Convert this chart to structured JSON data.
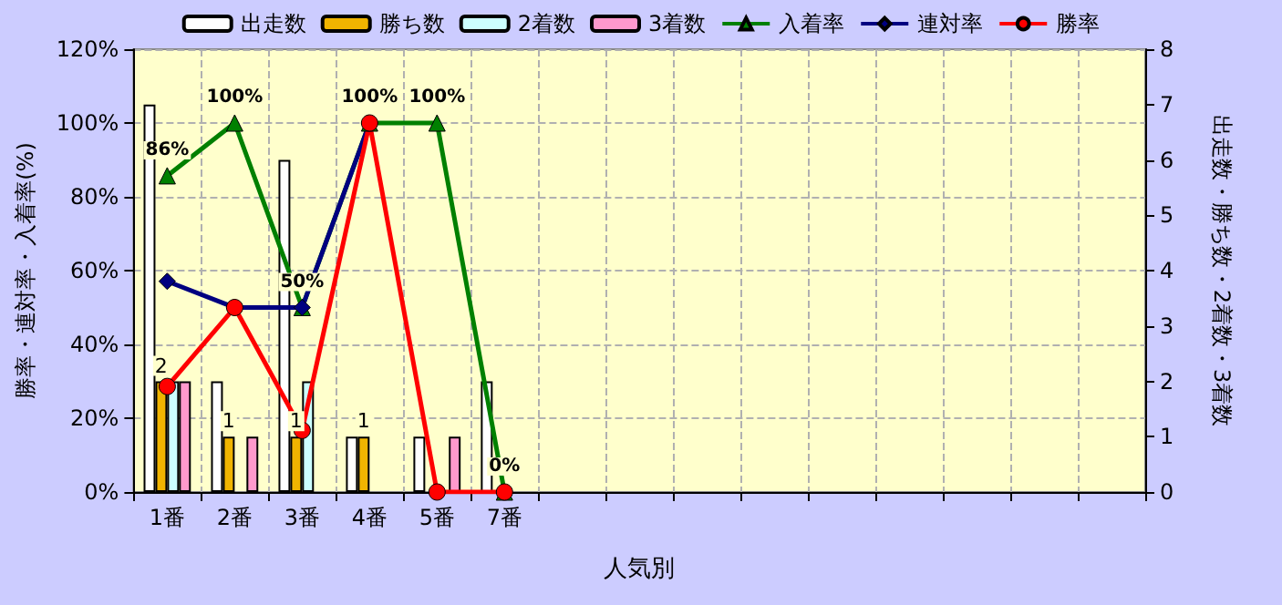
{
  "chart_data": {
    "type": "bar",
    "xlabel": "人気別",
    "ylabel": "勝率・連対率・入着率(%)",
    "y2label": "出走数・勝ち数・2着数・3着数",
    "categories": [
      "1番",
      "2番",
      "3番",
      "4番",
      "5番",
      "7番",
      null,
      null,
      null,
      null,
      null,
      null,
      null,
      null,
      null
    ],
    "ylim": [
      0,
      120
    ],
    "yticks": [
      {
        "value": 0,
        "label": "0%"
      },
      {
        "value": 20,
        "label": "20%"
      },
      {
        "value": 40,
        "label": "40%"
      },
      {
        "value": 60,
        "label": "60%"
      },
      {
        "value": 80,
        "label": "80%"
      },
      {
        "value": 100,
        "label": "100%"
      },
      {
        "value": 120,
        "label": "120%"
      }
    ],
    "y2lim": [
      0,
      8
    ],
    "y2ticks": [
      0,
      1,
      2,
      3,
      4,
      5,
      6,
      7,
      8
    ],
    "grid": true,
    "legend": "top",
    "series": [
      {
        "name": "出走数",
        "axis": "y2",
        "color": "#ffffff",
        "values": [
          7,
          2,
          6,
          1,
          1,
          2,
          null,
          null,
          null,
          null,
          null,
          null,
          null,
          null,
          null
        ]
      },
      {
        "name": "勝ち数",
        "axis": "y2",
        "color": "#f0b400",
        "values": [
          2,
          1,
          1,
          1,
          0,
          0,
          null,
          null,
          null,
          null,
          null,
          null,
          null,
          null,
          null
        ],
        "value_labels": [
          "2",
          "1",
          "1",
          "1",
          null,
          null,
          null,
          null,
          null,
          null,
          null,
          null,
          null,
          null,
          null
        ]
      },
      {
        "name": "2着数",
        "axis": "y2",
        "color": "#ccffff",
        "values": [
          2,
          0,
          2,
          0,
          0,
          0,
          null,
          null,
          null,
          null,
          null,
          null,
          null,
          null,
          null
        ]
      },
      {
        "name": "3着数",
        "axis": "y2",
        "color": "#ff99cc",
        "values": [
          2,
          1,
          0,
          0,
          1,
          0,
          null,
          null,
          null,
          null,
          null,
          null,
          null,
          null,
          null
        ]
      },
      {
        "name": "入着率",
        "type": "line",
        "color": "#008000",
        "marker": "triangle",
        "values": [
          85.7,
          100,
          50,
          100,
          100,
          0,
          null,
          null,
          null,
          null,
          null,
          null,
          null,
          null,
          null
        ],
        "value_labels": [
          "86%",
          "100%",
          "50%",
          "100%",
          "100%",
          "0%",
          null,
          null,
          null,
          null,
          null,
          null,
          null,
          null,
          null
        ]
      },
      {
        "name": "連対率",
        "type": "line",
        "color": "#000080",
        "marker": "diamond",
        "values": [
          57.1,
          50,
          50,
          100,
          null,
          null,
          null,
          null,
          null,
          null,
          null,
          null,
          null,
          null,
          null
        ]
      },
      {
        "name": "勝率",
        "type": "line",
        "color": "#ff0000",
        "marker": "circle",
        "values": [
          28.6,
          50,
          16.7,
          100,
          0,
          0,
          null,
          null,
          null,
          null,
          null,
          null,
          null,
          null,
          null
        ]
      }
    ]
  }
}
